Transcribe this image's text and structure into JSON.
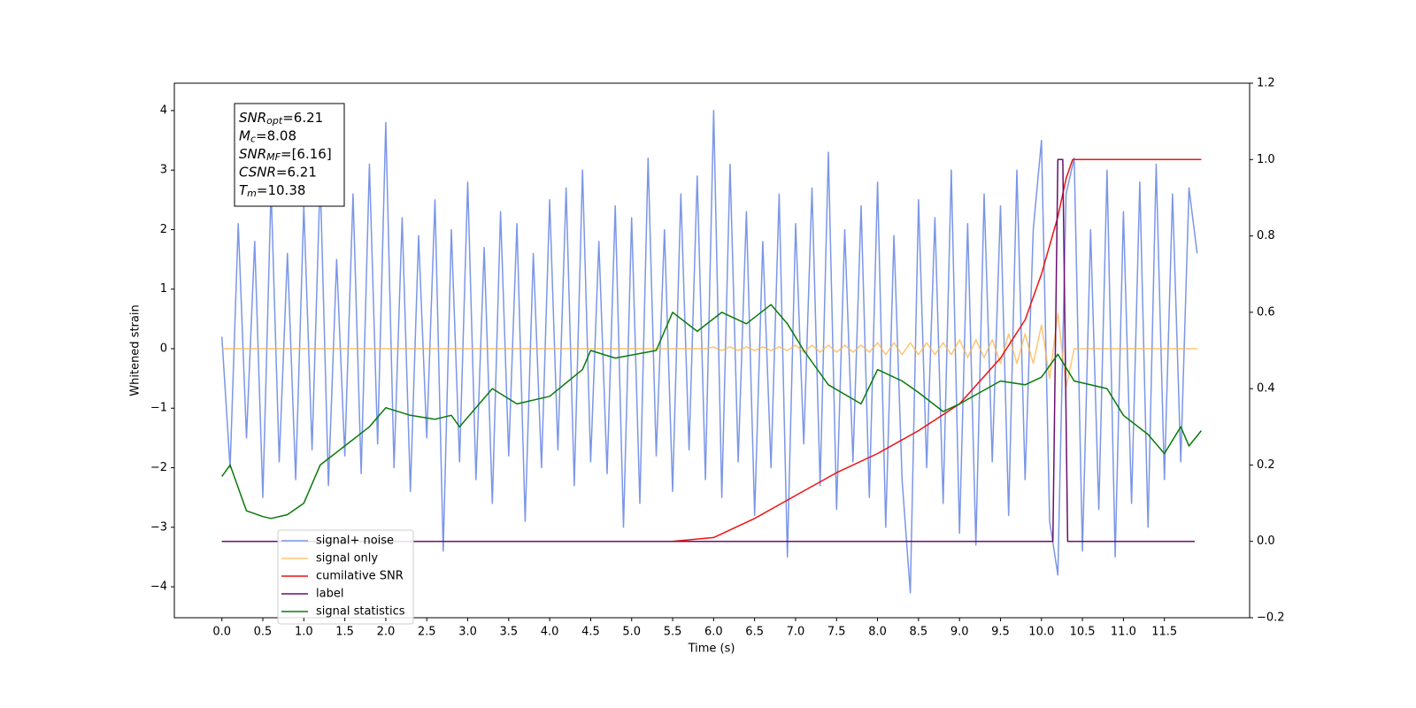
{
  "chart_data": {
    "type": "line",
    "xlabel": "Time (s)",
    "ylabel": "Whitened strain",
    "xlim": [
      -0.58,
      12.54
    ],
    "ylim": [
      -4.52,
      4.46
    ],
    "y2lim": [
      -0.2,
      1.2
    ],
    "xticks": [
      {
        "value": 0,
        "label": "0.0"
      },
      0.5,
      {
        "value": 1,
        "label": "1.0"
      },
      1.5,
      {
        "value": 2,
        "label": "2.0"
      },
      2.5,
      {
        "value": 3,
        "label": "3.0"
      },
      3.5,
      {
        "value": 4,
        "label": "4.0"
      },
      4.5,
      {
        "value": 5,
        "label": "5.0"
      },
      5.5,
      {
        "value": 6,
        "label": "6.0"
      },
      6.5,
      {
        "value": 7,
        "label": "7.0"
      },
      7.5,
      {
        "value": 8,
        "label": "8.0"
      },
      8.5,
      {
        "value": 9,
        "label": "9.0"
      },
      9.5,
      {
        "value": 10,
        "label": "10.0"
      },
      10.5,
      {
        "value": 11,
        "label": "11.0"
      },
      11.5
    ],
    "yticks": [
      {
        "value": -4,
        "label": "−4"
      },
      {
        "value": -3,
        "label": "−3"
      },
      {
        "value": -2,
        "label": "−2"
      },
      {
        "value": -1,
        "label": "−1"
      },
      0,
      1,
      2,
      3,
      4
    ],
    "y2ticks": [
      {
        "value": -0.2,
        "label": "−0.2"
      },
      {
        "value": 0,
        "label": "0.0"
      },
      0.2,
      0.4,
      0.6,
      0.8,
      {
        "value": 1,
        "label": "1.0"
      },
      1.2
    ],
    "legend_loc": "lower left",
    "annotation": [
      {
        "text": "SNR",
        "sub": "opt",
        "rest": "=6.21"
      },
      {
        "text": "M",
        "sub": "c",
        "rest": "=8.08"
      },
      {
        "text": "SNR",
        "sub": "MF",
        "rest": "=[6.16]"
      },
      {
        "text": "CSNR",
        "sub": null,
        "rest": "=6.21"
      },
      {
        "text": "T",
        "sub": "m",
        "rest": "=10.38"
      }
    ],
    "series": [
      {
        "name": "signal+ noise",
        "color": "#7b96e8",
        "axis": "y",
        "x": [
          0,
          0.1,
          0.2,
          0.3,
          0.4,
          0.5,
          0.6,
          0.7,
          0.8,
          0.9,
          1,
          1.1,
          1.2,
          1.3,
          1.4,
          1.5,
          1.6,
          1.7,
          1.8,
          1.9,
          2,
          2.1,
          2.2,
          2.3,
          2.4,
          2.5,
          2.6,
          2.7,
          2.8,
          2.9,
          3,
          3.1,
          3.2,
          3.3,
          3.4,
          3.5,
          3.6,
          3.7,
          3.8,
          3.9,
          4,
          4.1,
          4.2,
          4.3,
          4.4,
          4.5,
          4.6,
          4.7,
          4.8,
          4.9,
          5,
          5.1,
          5.2,
          5.3,
          5.4,
          5.5,
          5.6,
          5.7,
          5.8,
          5.9,
          6,
          6.1,
          6.2,
          6.3,
          6.4,
          6.5,
          6.6,
          6.7,
          6.8,
          6.9,
          7,
          7.1,
          7.2,
          7.3,
          7.4,
          7.5,
          7.6,
          7.7,
          7.8,
          7.9,
          8,
          8.1,
          8.2,
          8.3,
          8.4,
          8.5,
          8.6,
          8.7,
          8.8,
          8.9,
          9,
          9.1,
          9.2,
          9.3,
          9.4,
          9.5,
          9.6,
          9.7,
          9.8,
          9.9,
          10,
          10.1,
          10.2,
          10.3,
          10.4,
          10.5,
          10.6,
          10.7,
          10.8,
          10.9,
          11,
          11.1,
          11.2,
          11.3,
          11.4,
          11.5,
          11.6,
          11.7,
          11.8,
          11.9
        ],
        "values": [
          0.2,
          -2.0,
          2.1,
          -1.5,
          1.8,
          -2.5,
          2.7,
          -1.9,
          1.6,
          -2.2,
          2.4,
          -1.7,
          2.9,
          -2.3,
          1.5,
          -1.8,
          2.6,
          -2.1,
          3.1,
          -1.6,
          3.8,
          -2.0,
          2.2,
          -2.4,
          1.9,
          -1.5,
          2.5,
          -3.4,
          2.0,
          -1.9,
          2.8,
          -2.2,
          1.7,
          -2.6,
          2.3,
          -1.8,
          2.1,
          -2.9,
          1.6,
          -2.0,
          2.5,
          -1.7,
          2.7,
          -2.3,
          3.0,
          -1.9,
          1.8,
          -2.1,
          2.4,
          -3.0,
          2.2,
          -2.6,
          3.2,
          -1.8,
          2.0,
          -2.4,
          2.6,
          -1.7,
          2.9,
          -2.2,
          4.0,
          -2.5,
          3.1,
          -1.9,
          2.3,
          -2.8,
          1.8,
          -2.0,
          2.6,
          -3.5,
          2.1,
          -1.6,
          2.7,
          -2.3,
          3.3,
          -2.7,
          2.0,
          -1.9,
          2.4,
          -2.5,
          2.8,
          -3.0,
          1.9,
          -2.2,
          -4.1,
          2.5,
          -2.0,
          2.2,
          -2.6,
          3.0,
          -3.1,
          2.1,
          -3.3,
          2.6,
          -1.9,
          2.4,
          -2.8,
          3.0,
          -2.2,
          2.0,
          3.5,
          -2.9,
          -3.8,
          2.6,
          3.2,
          -3.4,
          2.0,
          -2.7,
          3.0,
          -3.5,
          2.3,
          -2.6,
          2.8,
          -3.0,
          3.1,
          -2.2,
          2.6,
          -1.9,
          2.7,
          1.6
        ]
      },
      {
        "name": "signal only",
        "color": "#ffb347",
        "axis": "y",
        "x": [
          0,
          0.1,
          0.2,
          0.3,
          0.4,
          0.5,
          0.6,
          0.7,
          0.8,
          0.9,
          1,
          1.1,
          1.2,
          1.3,
          1.4,
          1.5,
          1.6,
          1.7,
          1.8,
          1.9,
          2,
          2.1,
          2.2,
          2.3,
          2.4,
          2.5,
          2.6,
          2.7,
          2.8,
          2.9,
          3,
          3.1,
          3.2,
          3.3,
          3.4,
          3.5,
          3.6,
          3.7,
          3.8,
          3.9,
          4,
          4.1,
          4.2,
          4.3,
          4.4,
          4.5,
          4.6,
          4.7,
          4.8,
          4.9,
          5,
          5.1,
          5.2,
          5.3,
          5.4,
          5.5,
          5.6,
          5.7,
          5.8,
          5.9,
          6,
          6.1,
          6.2,
          6.3,
          6.4,
          6.5,
          6.6,
          6.7,
          6.8,
          6.9,
          7,
          7.1,
          7.2,
          7.3,
          7.4,
          7.5,
          7.6,
          7.7,
          7.8,
          7.9,
          8,
          8.1,
          8.2,
          8.3,
          8.4,
          8.5,
          8.6,
          8.7,
          8.8,
          8.9,
          9,
          9.1,
          9.2,
          9.3,
          9.4,
          9.5,
          9.6,
          9.7,
          9.8,
          9.9,
          10,
          10.1,
          10.2,
          10.3,
          10.4,
          10.5,
          10.6,
          10.7,
          10.8,
          10.9,
          11,
          11.1,
          11.2,
          11.3,
          11.4,
          11.5,
          11.6,
          11.7,
          11.8,
          11.9
        ],
        "values": [
          0,
          0,
          0,
          0,
          0,
          0,
          0,
          0,
          0,
          0,
          0,
          0,
          0,
          0,
          0,
          0,
          0,
          0,
          0,
          0,
          0,
          0,
          0,
          0,
          0,
          0,
          0,
          0,
          0,
          0,
          0,
          0,
          0,
          0,
          0,
          0,
          0,
          0,
          0,
          0,
          0,
          0,
          0,
          0,
          0,
          0,
          0,
          0,
          0,
          0,
          0,
          0,
          0,
          0,
          0,
          0,
          0,
          0,
          0,
          0,
          0.03,
          -0.03,
          0.03,
          -0.03,
          0.03,
          -0.03,
          0.03,
          -0.03,
          0.03,
          -0.03,
          0.06,
          -0.06,
          0.06,
          -0.06,
          0.06,
          -0.06,
          0.06,
          -0.06,
          0.06,
          -0.06,
          0.1,
          -0.1,
          0.1,
          -0.1,
          0.1,
          -0.1,
          0.1,
          -0.1,
          0.1,
          -0.1,
          0.15,
          -0.15,
          0.15,
          -0.15,
          0.15,
          -0.25,
          0.25,
          -0.25,
          0.25,
          -0.25,
          0.4,
          -0.5,
          0.6,
          -0.65,
          0,
          0,
          0,
          0,
          0,
          0,
          0,
          0,
          0,
          0,
          0,
          0,
          0,
          0,
          0,
          0
        ]
      },
      {
        "name": "cumilative SNR",
        "color": "#ee1111",
        "axis": "y2",
        "x": [
          0,
          5.5,
          6.0,
          6.5,
          7.0,
          7.5,
          8.0,
          8.5,
          9.0,
          9.5,
          9.8,
          10.0,
          10.2,
          10.3,
          10.38,
          11.95
        ],
        "values": [
          0,
          0,
          0.01,
          0.06,
          0.12,
          0.18,
          0.23,
          0.29,
          0.36,
          0.48,
          0.58,
          0.7,
          0.85,
          0.95,
          1.0,
          1.0
        ]
      },
      {
        "name": "label",
        "color": "#6a0f6e",
        "axis": "y2",
        "x": [
          0,
          10.14,
          10.2,
          10.26,
          10.32,
          11.87
        ],
        "values": [
          0,
          0,
          1,
          1,
          0,
          0
        ]
      },
      {
        "name": "signal statistics",
        "color": "#0a7a0a",
        "axis": "y2",
        "x": [
          0,
          0.1,
          0.3,
          0.5,
          0.6,
          0.8,
          1.0,
          1.2,
          1.5,
          1.8,
          2.0,
          2.3,
          2.6,
          2.8,
          2.9,
          3.3,
          3.6,
          4.0,
          4.4,
          4.5,
          4.8,
          5.3,
          5.5,
          5.8,
          6.1,
          6.4,
          6.7,
          6.9,
          7.1,
          7.4,
          7.8,
          8.0,
          8.3,
          8.5,
          8.8,
          9.0,
          9.5,
          9.8,
          10.0,
          10.2,
          10.4,
          10.8,
          11.0,
          11.3,
          11.5,
          11.7,
          11.8,
          11.95
        ],
        "values": [
          0.17,
          0.2,
          0.08,
          0.065,
          0.06,
          0.07,
          0.1,
          0.2,
          0.25,
          0.3,
          0.35,
          0.33,
          0.32,
          0.33,
          0.3,
          0.4,
          0.36,
          0.38,
          0.45,
          0.5,
          0.48,
          0.5,
          0.6,
          0.55,
          0.6,
          0.57,
          0.62,
          0.57,
          0.5,
          0.41,
          0.36,
          0.45,
          0.42,
          0.39,
          0.34,
          0.36,
          0.42,
          0.41,
          0.43,
          0.49,
          0.42,
          0.4,
          0.33,
          0.28,
          0.23,
          0.3,
          0.25,
          0.29
        ]
      }
    ]
  }
}
